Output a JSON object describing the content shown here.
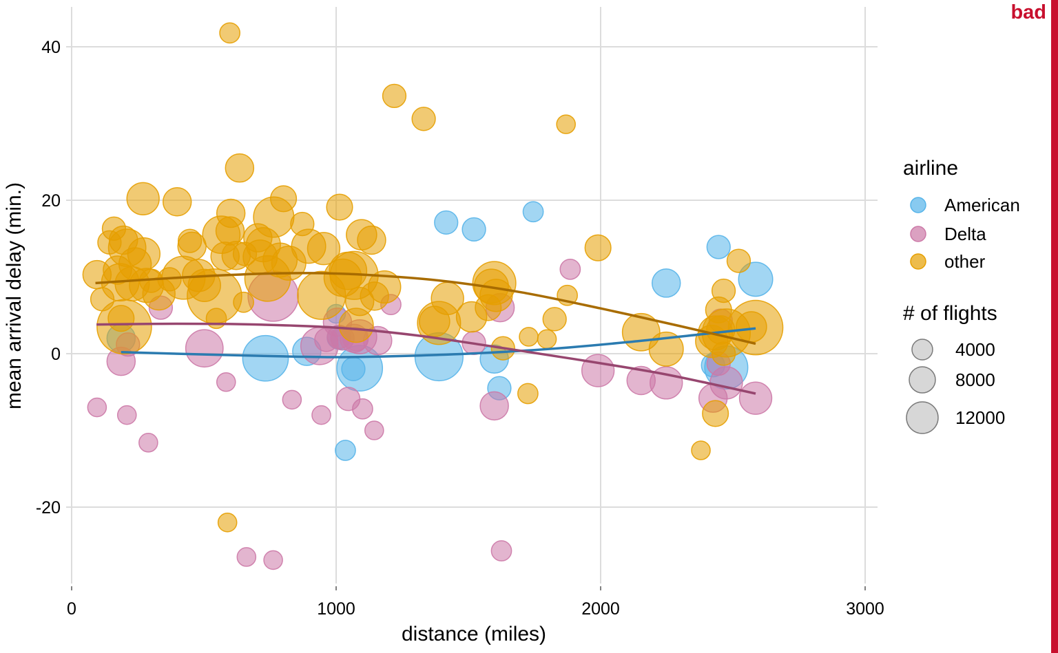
{
  "badge": {
    "text": "bad",
    "color": "#C8102E"
  },
  "chart_data": {
    "type": "scatter",
    "xlabel": "distance (miles)",
    "ylabel": "mean arrival delay (min.)",
    "xlim": [
      0,
      3000
    ],
    "ylim": [
      -30,
      45
    ],
    "xticks": [
      0,
      1000,
      2000,
      3000
    ],
    "yticks": [
      -20,
      0,
      20,
      40
    ],
    "grid": true,
    "legend_color_title": "airline",
    "legend_size_title": "# of flights",
    "size_legend": [
      4000,
      8000,
      12000
    ],
    "series": [
      {
        "name": "American",
        "color": "#56B4E9",
        "points": [
          [
            187,
            2,
            2500
          ],
          [
            1000,
            5.2,
            800
          ],
          [
            1010,
            2.1,
            1500
          ],
          [
            1023,
            2,
            1500
          ],
          [
            733,
            -0.6,
            8000
          ],
          [
            889,
            0.3,
            2500
          ],
          [
            1065,
            -2,
            1500
          ],
          [
            1089,
            -1.9,
            8000
          ],
          [
            1035,
            -12.6,
            1000
          ],
          [
            1389,
            -0.4,
            9000
          ],
          [
            1416,
            17.1,
            1500
          ],
          [
            1521,
            16.2,
            1500
          ],
          [
            1598,
            -0.7,
            2500
          ],
          [
            1617,
            -4.5,
            1500
          ],
          [
            1745,
            18.5,
            1000
          ],
          [
            2248,
            9.2,
            2500
          ],
          [
            2446,
            13.9,
            1500
          ],
          [
            2425,
            -1.5,
            1500
          ],
          [
            2475,
            -1.8,
            7000
          ],
          [
            2586,
            9.7,
            4000
          ]
        ],
        "trend": [
          [
            187,
            0.2
          ],
          [
            500,
            -0.1
          ],
          [
            800,
            -0.35
          ],
          [
            1000,
            -0.45
          ],
          [
            1200,
            -0.35
          ],
          [
            1500,
            0
          ],
          [
            1800,
            0.6
          ],
          [
            2100,
            1.5
          ],
          [
            2400,
            2.6
          ],
          [
            2586,
            3.3
          ]
        ]
      },
      {
        "name": "Delta",
        "color": "#CC79A7",
        "points": [
          [
            96,
            -7,
            800
          ],
          [
            187,
            -1,
            2500
          ],
          [
            209,
            -8,
            800
          ],
          [
            213,
            1.2,
            1500
          ],
          [
            290,
            -11.6,
            800
          ],
          [
            337,
            6,
            1500
          ],
          [
            502,
            0.7,
            5000
          ],
          [
            584,
            -3.7,
            800
          ],
          [
            661,
            -26.5,
            800
          ],
          [
            762,
            7.5,
            10000
          ],
          [
            762,
            -26.9,
            800
          ],
          [
            833,
            -6,
            800
          ],
          [
            937,
            1,
            5000
          ],
          [
            944,
            -8,
            800
          ],
          [
            963,
            1.8,
            1500
          ],
          [
            1005,
            4.1,
            2500
          ],
          [
            1011,
            2.2,
            1500
          ],
          [
            1024,
            2,
            1500
          ],
          [
            1046,
            -5.9,
            1500
          ],
          [
            1068,
            2,
            2500
          ],
          [
            1076,
            1.9,
            1500
          ],
          [
            1089,
            2.2,
            4000
          ],
          [
            1100,
            -7.2,
            1000
          ],
          [
            1144,
            -10,
            800
          ],
          [
            1157,
            1.7,
            2500
          ],
          [
            1207,
            6.4,
            1000
          ],
          [
            1521,
            1.4,
            1500
          ],
          [
            1598,
            -6.8,
            2500
          ],
          [
            1620,
            6,
            2500
          ],
          [
            1625,
            -25.7,
            1000
          ],
          [
            1990,
            -2.2,
            3500
          ],
          [
            2153,
            -3.5,
            2500
          ],
          [
            2248,
            -3.8,
            3500
          ],
          [
            2425,
            -5.8,
            2500
          ],
          [
            2446,
            -1.3,
            1500
          ],
          [
            2454,
            4.3,
            1500
          ],
          [
            2475,
            -3.8,
            3500
          ],
          [
            2586,
            -5.8,
            3500
          ],
          [
            1885,
            11,
            1000
          ]
        ],
        "trend": [
          [
            94,
            3.8
          ],
          [
            400,
            3.9
          ],
          [
            700,
            3.8
          ],
          [
            1000,
            3.4
          ],
          [
            1300,
            2.4
          ],
          [
            1600,
            0.9
          ],
          [
            1900,
            -0.7
          ],
          [
            2200,
            -2.4
          ],
          [
            2400,
            -3.8
          ],
          [
            2586,
            -5.2
          ]
        ]
      },
      {
        "name": "other",
        "color": "#E69F00",
        "points": [
          [
            96,
            10.3,
            2500
          ],
          [
            116,
            7.1,
            1500
          ],
          [
            143,
            14.5,
            1500
          ],
          [
            160,
            16.3,
            1500
          ],
          [
            173,
            10.9,
            2500
          ],
          [
            187,
            4.6,
            2000
          ],
          [
            184,
            9.3,
            5000
          ],
          [
            196,
            14.8,
            2500
          ],
          [
            210,
            13.8,
            5000
          ],
          [
            199,
            3.5,
            12000
          ],
          [
            229,
            9.1,
            4000
          ],
          [
            240,
            11.7,
            3500
          ],
          [
            270,
            20.2,
            3500
          ],
          [
            273,
            13,
            3500
          ],
          [
            283,
            8.9,
            4000
          ],
          [
            301,
            9.5,
            1500
          ],
          [
            330,
            7.8,
            3500
          ],
          [
            370,
            9.7,
            1500
          ],
          [
            399,
            19.8,
            2500
          ],
          [
            423,
            9.9,
            7000
          ],
          [
            447,
            14.7,
            1500
          ],
          [
            455,
            14,
            2500
          ],
          [
            480,
            10.2,
            3500
          ],
          [
            502,
            8.9,
            3500
          ],
          [
            540,
            7.5,
            12000
          ],
          [
            547,
            4.6,
            1000
          ],
          [
            566,
            15.5,
            5000
          ],
          [
            580,
            12.7,
            2500
          ],
          [
            599,
            16,
            2500
          ],
          [
            602,
            18.3,
            2500
          ],
          [
            622,
            12.8,
            2500
          ],
          [
            635,
            24.2,
            2500
          ],
          [
            650,
            6.7,
            1000
          ],
          [
            655,
            13,
            1500
          ],
          [
            589,
            -22,
            800
          ],
          [
            598,
            41.8,
            1000
          ],
          [
            704,
            15.1,
            2500
          ],
          [
            713,
            12.6,
            4000
          ],
          [
            725,
            14.2,
            4000
          ],
          [
            741,
            9.8,
            8000
          ],
          [
            764,
            17.8,
            6000
          ],
          [
            788,
            12.2,
            4000
          ],
          [
            801,
            20.2,
            2000
          ],
          [
            821,
            11.8,
            4000
          ],
          [
            872,
            16.9,
            1500
          ],
          [
            896,
            14,
            4000
          ],
          [
            945,
            7.6,
            9000
          ],
          [
            953,
            13.7,
            3500
          ],
          [
            1013,
            19.1,
            2000
          ],
          [
            1025,
            9.9,
            5000
          ],
          [
            1045,
            10.8,
            5000
          ],
          [
            1068,
            10.2,
            9000
          ],
          [
            1076,
            3.7,
            4000
          ],
          [
            1089,
            6.8,
            2500
          ],
          [
            1096,
            15.5,
            3000
          ],
          [
            1134,
            14.8,
            2500
          ],
          [
            1145,
            7.5,
            2500
          ],
          [
            1183,
            8.7,
            3500
          ],
          [
            1220,
            33.6,
            1500
          ],
          [
            1331,
            30.6,
            1500
          ],
          [
            1372,
            4.2,
            3000
          ],
          [
            1389,
            4,
            7000
          ],
          [
            1421,
            7.2,
            3500
          ],
          [
            1512,
            4.8,
            3000
          ],
          [
            1575,
            6,
            2000
          ],
          [
            1587,
            8.8,
            4000
          ],
          [
            1598,
            9.2,
            7000
          ],
          [
            1605,
            7.6,
            3500
          ],
          [
            1631,
            0.7,
            1500
          ],
          [
            1725,
            -5.2,
            1000
          ],
          [
            1728,
            2.2,
            800
          ],
          [
            1797,
            1.9,
            800
          ],
          [
            1826,
            4.5,
            1500
          ],
          [
            1874,
            7.6,
            1000
          ],
          [
            1869,
            29.9,
            800
          ],
          [
            1990,
            13.8,
            2000
          ],
          [
            2153,
            2.8,
            5000
          ],
          [
            2248,
            0.6,
            4000
          ],
          [
            2379,
            -12.6,
            800
          ],
          [
            2420,
            1.6,
            3500
          ],
          [
            2434,
            2.7,
            4000
          ],
          [
            2446,
            5.7,
            2000
          ],
          [
            2454,
            3.1,
            2500
          ],
          [
            2465,
            0,
            1500
          ],
          [
            2475,
            2.7,
            9000
          ],
          [
            2465,
            8.2,
            1500
          ],
          [
            2434,
            -7.8,
            2000
          ],
          [
            2522,
            12.1,
            1500
          ],
          [
            2570,
            3.5,
            3000
          ],
          [
            2586,
            3.4,
            12000
          ]
        ],
        "trend": [
          [
            90,
            9.2
          ],
          [
            400,
            9.9
          ],
          [
            700,
            10.4
          ],
          [
            900,
            10.5
          ],
          [
            1100,
            10.3
          ],
          [
            1400,
            9.5
          ],
          [
            1700,
            8.0
          ],
          [
            2000,
            5.9
          ],
          [
            2300,
            3.6
          ],
          [
            2500,
            2.0
          ],
          [
            2586,
            1.3
          ]
        ]
      }
    ]
  }
}
